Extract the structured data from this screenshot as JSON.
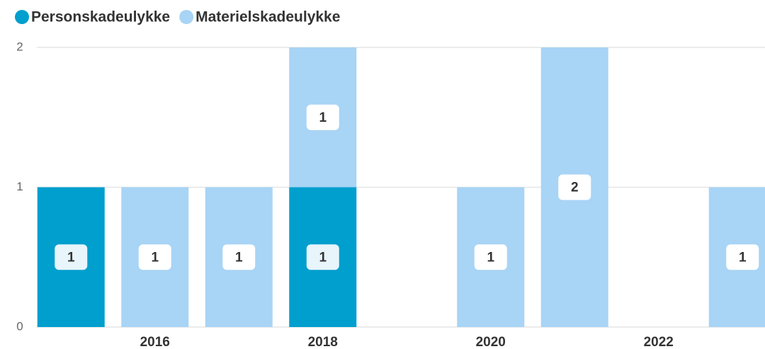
{
  "chart_data": {
    "type": "stacked-bar",
    "categories": [
      null,
      "2016",
      null,
      "2018",
      null,
      "2020",
      null,
      "2022",
      null
    ],
    "series": [
      {
        "name": "Personskadeulykke",
        "color": "#009fce",
        "values": [
          1,
          0,
          0,
          1,
          0,
          0,
          0,
          0,
          0
        ]
      },
      {
        "name": "Materielskadeulykke",
        "color": "#a8d4f5",
        "values": [
          0,
          1,
          1,
          1,
          0,
          1,
          2,
          0,
          1
        ]
      }
    ],
    "ylim": [
      0,
      2
    ],
    "yticks": [
      0,
      1,
      2
    ],
    "grid": true,
    "legend": "top"
  }
}
